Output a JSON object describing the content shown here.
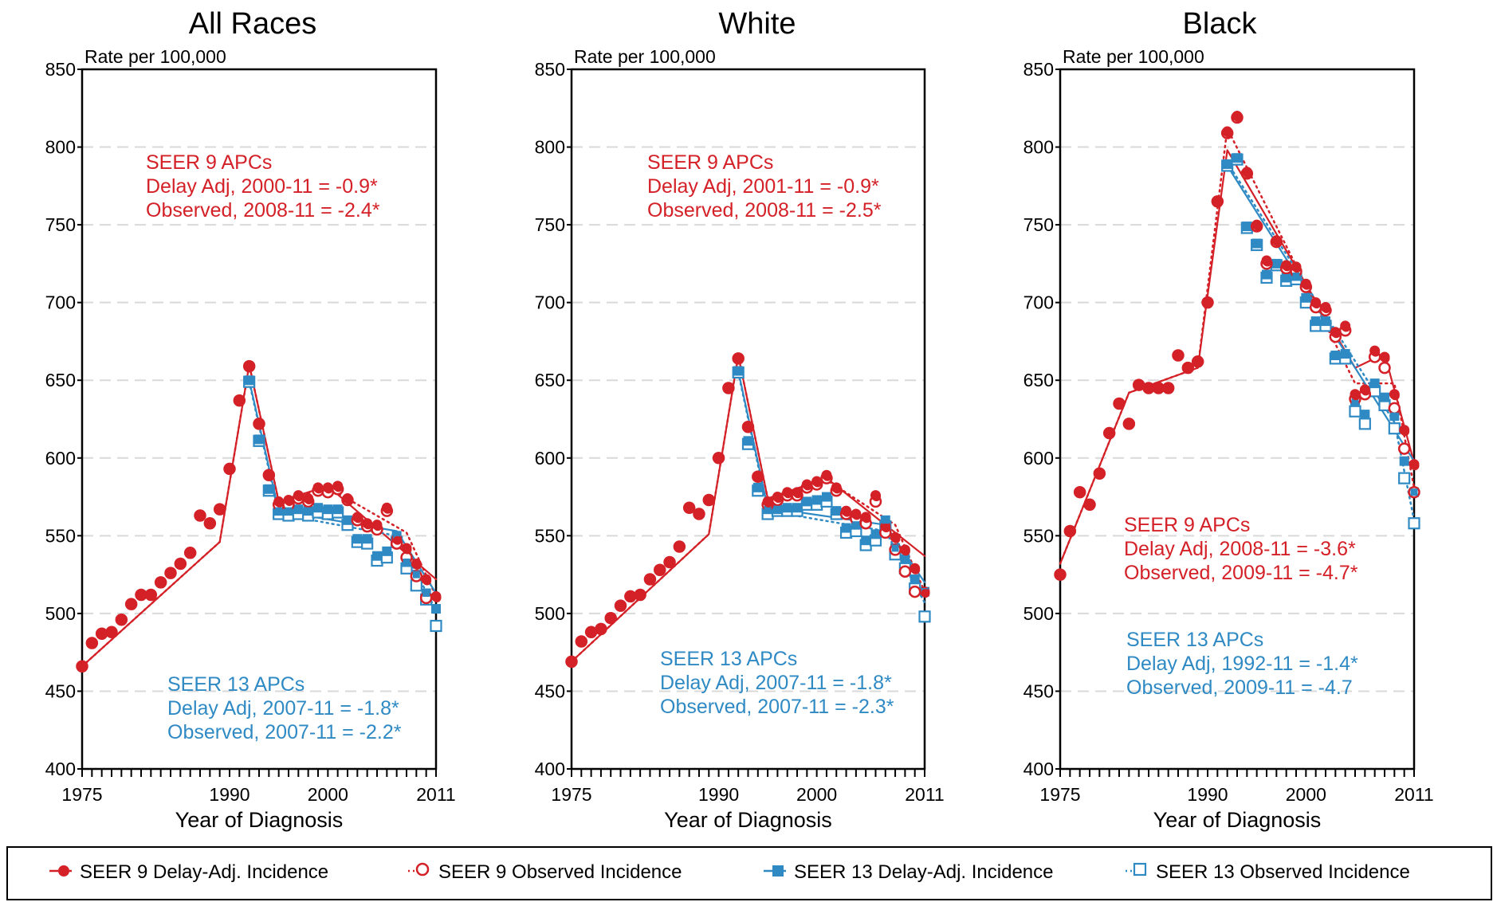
{
  "colors": {
    "red": "#d42027",
    "blue": "#2f8ac4",
    "grid": "#d9d9d9"
  },
  "legend": {
    "items": [
      {
        "label": "SEER 9 Delay-Adj. Incidence",
        "marker": "filled-circle",
        "color": "#d42027",
        "line": "solid"
      },
      {
        "label": "SEER 9 Observed Incidence",
        "marker": "open-circle",
        "color": "#d42027",
        "line": "dotted"
      },
      {
        "label": "SEER 13 Delay-Adj. Incidence",
        "marker": "filled-square",
        "color": "#2f8ac4",
        "line": "solid"
      },
      {
        "label": "SEER 13 Observed Incidence",
        "marker": "open-square",
        "color": "#2f8ac4",
        "line": "dotted"
      }
    ]
  },
  "chart_data": [
    {
      "type": "line",
      "title": "All Races",
      "ylabel": "Rate per 100,000",
      "xlabel": "Year of Diagnosis",
      "xlim": [
        1975,
        2011
      ],
      "ylim": [
        400,
        850
      ],
      "x_ticks": [
        "1975",
        "1990",
        "2000",
        "2011"
      ],
      "y_ticks": [
        "400",
        "450",
        "500",
        "550",
        "600",
        "650",
        "700",
        "750",
        "800",
        "850"
      ],
      "grid": true,
      "annotations": [
        {
          "group": "seer9",
          "lines": [
            "SEER 9 APCs",
            "Delay Adj, 2000-11 = -0.9*",
            "Observed, 2008-11 = -2.4*"
          ]
        },
        {
          "group": "seer13",
          "lines": [
            "SEER 13 APCs",
            "Delay Adj, 2007-11 = -1.8*",
            "Observed, 2007-11 = -2.2*"
          ]
        }
      ],
      "series": [
        {
          "name": "SEER 9 Delay-Adj. Incidence",
          "start_year": 1975,
          "values": [
            466,
            481,
            487,
            488,
            496,
            506,
            512,
            512,
            520,
            526,
            532,
            539,
            563,
            558,
            567,
            593,
            637,
            659,
            622,
            589,
            572,
            573,
            576,
            574,
            581,
            581,
            582,
            574,
            562,
            558,
            557,
            568,
            548,
            542,
            532,
            522,
            511
          ]
        },
        {
          "name": "SEER 9 Observed Incidence",
          "start_year": 1975,
          "values": [
            466,
            481,
            487,
            488,
            496,
            506,
            512,
            512,
            520,
            526,
            532,
            539,
            563,
            558,
            567,
            593,
            637,
            659,
            622,
            589,
            570,
            570,
            574,
            572,
            579,
            578,
            580,
            573,
            560,
            556,
            554,
            566,
            545,
            536,
            524,
            510
          ]
        },
        {
          "name": "SEER 13 Delay-Adj. Incidence",
          "start_year": 1992,
          "values": [
            650,
            612,
            580,
            566,
            566,
            567,
            566,
            568,
            567,
            567,
            560,
            548,
            548,
            537,
            540,
            550,
            533,
            525,
            513,
            503
          ]
        },
        {
          "name": "SEER 13 Observed Incidence",
          "start_year": 1992,
          "values": [
            649,
            611,
            579,
            564,
            563,
            564,
            563,
            565,
            564,
            565,
            557,
            546,
            545,
            534,
            536,
            546,
            529,
            518,
            509,
            492
          ]
        },
        {
          "name": "SEER 9 Delay Adj. Trend",
          "x": [
            1975,
            1989,
            1992,
            1995,
            2000,
            2011
          ],
          "y": [
            466,
            546,
            660,
            572,
            582,
            522
          ]
        },
        {
          "name": "SEER 9 Observed Trend",
          "x": [
            1975,
            1989,
            1992,
            1995,
            2000,
            2008,
            2011
          ],
          "y": [
            466,
            546,
            660,
            572,
            581,
            552,
            511
          ]
        },
        {
          "name": "SEER 13 Delay Adj. Trend",
          "x": [
            1992,
            1995,
            2007,
            2011
          ],
          "y": [
            650,
            566,
            553,
            513
          ]
        },
        {
          "name": "SEER 13 Observed Trend",
          "x": [
            1992,
            1995,
            2007,
            2011
          ],
          "y": [
            649,
            564,
            550,
            502
          ]
        }
      ]
    },
    {
      "type": "line",
      "title": "White",
      "ylabel": "Rate per 100,000",
      "xlabel": "Year of Diagnosis",
      "xlim": [
        1975,
        2011
      ],
      "ylim": [
        400,
        850
      ],
      "x_ticks": [
        "1975",
        "1990",
        "2000",
        "2011"
      ],
      "y_ticks": [
        "400",
        "450",
        "500",
        "550",
        "600",
        "650",
        "700",
        "750",
        "800",
        "850"
      ],
      "grid": true,
      "annotations": [
        {
          "group": "seer9",
          "lines": [
            "SEER 9 APCs",
            "Delay Adj, 2001-11 = -0.9*",
            "Observed, 2008-11 = -2.5*"
          ]
        },
        {
          "group": "seer13",
          "lines": [
            "SEER 13 APCs",
            "Delay Adj, 2007-11 = -1.8*",
            "Observed, 2007-11 = -2.3*"
          ]
        }
      ],
      "series": [
        {
          "name": "SEER 9 Delay-Adj. Incidence",
          "start_year": 1975,
          "values": [
            469,
            482,
            488,
            490,
            497,
            505,
            511,
            512,
            522,
            528,
            533,
            543,
            568,
            564,
            573,
            600,
            645,
            664,
            620,
            588,
            572,
            575,
            578,
            578,
            583,
            585,
            589,
            581,
            566,
            564,
            562,
            576,
            556,
            549,
            541,
            529,
            514
          ]
        },
        {
          "name": "SEER 9 Observed Incidence",
          "start_year": 1975,
          "values": [
            469,
            482,
            488,
            490,
            497,
            505,
            511,
            512,
            522,
            528,
            533,
            543,
            568,
            564,
            573,
            600,
            645,
            664,
            620,
            588,
            570,
            573,
            576,
            576,
            581,
            583,
            587,
            579,
            564,
            561,
            558,
            572,
            552,
            541,
            527,
            514
          ]
        },
        {
          "name": "SEER 13 Delay-Adj. Incidence",
          "start_year": 1992,
          "values": [
            656,
            611,
            581,
            567,
            567,
            568,
            568,
            572,
            573,
            575,
            566,
            555,
            557,
            547,
            551,
            560,
            542,
            535,
            522,
            514
          ]
        },
        {
          "name": "SEER 13 Observed Incidence",
          "start_year": 1992,
          "values": [
            655,
            609,
            579,
            564,
            566,
            566,
            566,
            570,
            570,
            572,
            564,
            552,
            553,
            544,
            547,
            556,
            538,
            529,
            516,
            498
          ]
        },
        {
          "name": "SEER 9 Delay Adj. Trend",
          "x": [
            1975,
            1989,
            1992,
            1995,
            2001,
            2011
          ],
          "y": [
            469,
            551,
            666,
            574,
            587,
            537
          ]
        },
        {
          "name": "SEER 9 Observed Trend",
          "x": [
            1975,
            1989,
            1992,
            1995,
            2001,
            2008,
            2011
          ],
          "y": [
            469,
            551,
            666,
            574,
            586,
            557,
            514
          ]
        },
        {
          "name": "SEER 13 Delay Adj. Trend",
          "x": [
            1992,
            1995,
            2007,
            2011
          ],
          "y": [
            656,
            568,
            557,
            520
          ]
        },
        {
          "name": "SEER 13 Observed Trend",
          "x": [
            1992,
            1995,
            2007,
            2011
          ],
          "y": [
            655,
            566,
            553,
            507
          ]
        }
      ]
    },
    {
      "type": "line",
      "title": "Black",
      "ylabel": "Rate per 100,000",
      "xlabel": "Year of Diagnosis",
      "xlim": [
        1975,
        2011
      ],
      "ylim": [
        400,
        850
      ],
      "x_ticks": [
        "1975",
        "1990",
        "2000",
        "2011"
      ],
      "y_ticks": [
        "400",
        "450",
        "500",
        "550",
        "600",
        "650",
        "700",
        "750",
        "800",
        "850"
      ],
      "grid": true,
      "annotations": [
        {
          "group": "seer9",
          "lines": [
            "SEER 9 APCs",
            "Delay Adj, 2008-11 = -3.6*",
            "Observed, 2009-11 = -4.7*"
          ]
        },
        {
          "group": "seer13",
          "lines": [
            "SEER 13 APCs",
            "Delay Adj, 1992-11 = -1.4*",
            "Observed, 2009-11 = -4.7"
          ]
        }
      ],
      "series": [
        {
          "name": "SEER 9 Delay-Adj. Incidence",
          "start_year": 1975,
          "values": [
            525,
            553,
            578,
            570,
            590,
            616,
            635,
            622,
            647,
            645,
            645,
            645,
            666,
            658,
            662,
            700,
            765,
            810,
            820,
            784,
            750,
            727,
            740,
            724,
            723,
            712,
            700,
            697,
            681,
            685,
            641,
            644,
            669,
            665,
            641,
            618,
            596
          ]
        },
        {
          "name": "SEER 9 Observed Incidence",
          "start_year": 1975,
          "values": [
            525,
            553,
            578,
            570,
            590,
            616,
            635,
            622,
            647,
            645,
            645,
            645,
            666,
            658,
            662,
            700,
            765,
            809,
            819,
            783,
            749,
            725,
            739,
            722,
            720,
            710,
            697,
            695,
            678,
            682,
            638,
            641,
            665,
            658,
            632,
            606,
            578
          ]
        },
        {
          "name": "SEER 13 Delay-Adj. Incidence",
          "start_year": 1992,
          "values": [
            789,
            793,
            749,
            738,
            718,
            725,
            716,
            717,
            703,
            688,
            688,
            666,
            667,
            636,
            628,
            648,
            639,
            627,
            598,
            578
          ]
        },
        {
          "name": "SEER 13 Observed Incidence",
          "start_year": 1992,
          "values": [
            788,
            792,
            748,
            737,
            716,
            724,
            714,
            715,
            700,
            685,
            685,
            664,
            664,
            630,
            622,
            643,
            634,
            619,
            587,
            558
          ]
        },
        {
          "name": "SEER 9 Delay Adj. Trend",
          "x": [
            1975,
            1982,
            1989,
            1992,
            2005,
            2008,
            2011
          ],
          "y": [
            532,
            642,
            658,
            798,
            658,
            667,
            597
          ]
        },
        {
          "name": "SEER 9 Observed Trend",
          "x": [
            1975,
            1982,
            1989,
            1992,
            2005,
            2009,
            2011
          ],
          "y": [
            532,
            642,
            658,
            812,
            648,
            648,
            581
          ]
        },
        {
          "name": "SEER 13 Delay Adj. Trend",
          "x": [
            1992,
            2011
          ],
          "y": [
            788,
            598
          ]
        },
        {
          "name": "SEER 13 Observed Trend",
          "x": [
            1992,
            2009,
            2011
          ],
          "y": [
            790,
            623,
            560
          ]
        }
      ]
    }
  ]
}
